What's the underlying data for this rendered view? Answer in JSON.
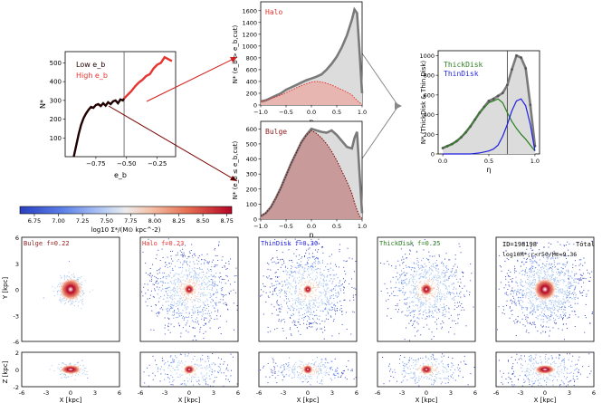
{
  "colors": {
    "gray_curve": "#7a7a7a",
    "gray_fill": "#dcdcdc",
    "red_fill": "#e8b6b0",
    "bulge": "#8b1a1a",
    "halo": "#e8332f",
    "thin": "#1f1fe0",
    "thick": "#2a7f1f",
    "dark_red": "#7a0000",
    "hist_red": "#e8332f",
    "hist_dark": "#200000"
  },
  "chart_data": [
    {
      "id": "eb_hist",
      "type": "line",
      "xlabel": "e_b",
      "ylabel": "N*",
      "xlim": [
        -1.0,
        -0.1
      ],
      "ylim": [
        0,
        560
      ],
      "xticks": [
        -0.75,
        -0.5,
        -0.25
      ],
      "xticklabels": [
        "−0.75",
        "−0.50",
        "−0.25"
      ],
      "yticks": [
        100,
        200,
        300,
        400,
        500
      ],
      "yticklabels": [
        "100",
        "200",
        "300",
        "400",
        "500"
      ],
      "cut_line": -0.52,
      "legend": [
        "Low e_b",
        "High e_b"
      ],
      "series": [
        {
          "name": "Low e_b",
          "x": [
            -0.93,
            -0.91,
            -0.89,
            -0.87,
            -0.85,
            -0.83,
            -0.81,
            -0.79,
            -0.77,
            -0.75,
            -0.73,
            -0.71,
            -0.69,
            -0.67,
            -0.65,
            -0.63,
            -0.61,
            -0.59,
            -0.57,
            -0.55,
            -0.53,
            -0.52
          ],
          "y": [
            0,
            60,
            120,
            170,
            205,
            230,
            250,
            265,
            260,
            275,
            280,
            270,
            285,
            272,
            290,
            280,
            295,
            300,
            285,
            305,
            300,
            310
          ]
        },
        {
          "name": "High e_b",
          "x": [
            -0.52,
            -0.49,
            -0.46,
            -0.43,
            -0.4,
            -0.37,
            -0.34,
            -0.31,
            -0.28,
            -0.25,
            -0.22,
            -0.19,
            -0.16,
            -0.13
          ],
          "y": [
            310,
            330,
            350,
            375,
            395,
            410,
            430,
            440,
            470,
            490,
            500,
            530,
            520,
            510
          ]
        }
      ]
    },
    {
      "id": "halo_eta",
      "type": "area",
      "title": "Halo",
      "xlabel": "η",
      "ylabel": "N* (e_b > e_b,cut)",
      "xlim": [
        -1.0,
        1.0
      ],
      "ylim": [
        0,
        1750
      ],
      "xticks": [
        -1.0,
        -0.5,
        0.0,
        0.5,
        1.0
      ],
      "xticklabels": [
        "−1.0",
        "−0.5",
        "0.0",
        "0.5",
        "1.0"
      ],
      "yticks": [
        0,
        200,
        400,
        600,
        800,
        1000,
        1200,
        1400,
        1600
      ],
      "yticklabels": [
        "0",
        "200",
        "400",
        "600",
        "800",
        "1000",
        "1200",
        "1400",
        "1600"
      ],
      "x": [
        -1.0,
        -0.9,
        -0.8,
        -0.7,
        -0.6,
        -0.5,
        -0.4,
        -0.3,
        -0.2,
        -0.1,
        0.0,
        0.1,
        0.2,
        0.3,
        0.4,
        0.5,
        0.6,
        0.7,
        0.8,
        0.85,
        0.9,
        0.95,
        1.0
      ],
      "series": [
        {
          "name": "All",
          "values": [
            60,
            80,
            120,
            160,
            200,
            260,
            300,
            340,
            380,
            420,
            450,
            480,
            520,
            600,
            700,
            820,
            980,
            1180,
            1450,
            1620,
            1560,
            900,
            200
          ]
        },
        {
          "name": "Halo",
          "values": [
            60,
            80,
            110,
            140,
            170,
            210,
            250,
            290,
            330,
            360,
            390,
            400,
            390,
            370,
            340,
            300,
            260,
            220,
            170,
            120,
            80,
            40,
            10
          ]
        }
      ]
    },
    {
      "id": "bulge_eta",
      "type": "area",
      "title": "Bulge",
      "xlabel": "η",
      "ylabel": "N* (e_b ≤ e_b,cut)",
      "xlim": [
        -1.0,
        1.0
      ],
      "ylim": [
        0,
        650
      ],
      "xticks": [
        -1.0,
        -0.5,
        0.0,
        0.5,
        1.0
      ],
      "xticklabels": [
        "−1.0",
        "−0.5",
        "0.0",
        "0.5",
        "1.0"
      ],
      "yticks": [
        0,
        100,
        200,
        300,
        400,
        500,
        600
      ],
      "yticklabels": [
        "0",
        "100",
        "200",
        "300",
        "400",
        "500",
        "600"
      ],
      "x": [
        -1.0,
        -0.9,
        -0.8,
        -0.7,
        -0.6,
        -0.5,
        -0.4,
        -0.3,
        -0.2,
        -0.1,
        0.0,
        0.1,
        0.2,
        0.3,
        0.4,
        0.5,
        0.6,
        0.7,
        0.8,
        0.85,
        0.9,
        0.95,
        1.0
      ],
      "series": [
        {
          "name": "All",
          "values": [
            20,
            40,
            80,
            140,
            210,
            290,
            370,
            440,
            510,
            560,
            600,
            590,
            580,
            575,
            590,
            560,
            520,
            480,
            470,
            540,
            580,
            300,
            40
          ]
        },
        {
          "name": "Bulge",
          "values": [
            20,
            40,
            80,
            140,
            210,
            290,
            370,
            440,
            510,
            560,
            590,
            570,
            540,
            500,
            450,
            390,
            320,
            250,
            170,
            110,
            60,
            20,
            5
          ]
        }
      ]
    },
    {
      "id": "disk_eta",
      "type": "line",
      "xlabel": "η",
      "ylabel": "N* (ThickDisk & Thin Disk)",
      "xlim": [
        -0.05,
        1.05
      ],
      "ylim": [
        0,
        1050
      ],
      "xticks": [
        0.0,
        0.5,
        1.0
      ],
      "xticklabels": [
        "0.0",
        "0.5",
        "1.0"
      ],
      "yticks": [
        0,
        200,
        400,
        600,
        800,
        1000
      ],
      "yticklabels": [
        "0",
        "200",
        "400",
        "600",
        "800",
        "1000"
      ],
      "cut_line": 0.7,
      "legend": [
        "ThickDisk",
        "ThinDisk"
      ],
      "x": [
        0.0,
        0.05,
        0.1,
        0.15,
        0.2,
        0.25,
        0.3,
        0.35,
        0.4,
        0.45,
        0.5,
        0.55,
        0.6,
        0.65,
        0.7,
        0.75,
        0.8,
        0.85,
        0.9,
        0.95,
        1.0
      ],
      "series": [
        {
          "name": "Total",
          "values": [
            60,
            80,
            100,
            130,
            170,
            220,
            280,
            350,
            420,
            480,
            540,
            560,
            590,
            620,
            700,
            860,
            1000,
            980,
            870,
            500,
            80
          ]
        },
        {
          "name": "ThickDisk",
          "values": [
            60,
            80,
            100,
            130,
            170,
            220,
            280,
            350,
            420,
            470,
            520,
            540,
            560,
            520,
            420,
            330,
            260,
            200,
            150,
            90,
            30
          ]
        },
        {
          "name": "ThinDisk",
          "values": [
            0,
            0,
            0,
            0,
            0,
            0,
            0,
            5,
            10,
            20,
            30,
            50,
            90,
            180,
            300,
            440,
            540,
            560,
            490,
            300,
            30
          ]
        }
      ]
    }
  ],
  "colorbar": {
    "label": "log10 Σ*/(M⊙ kpc^-2)",
    "vmin": 6.6,
    "vmax": 8.8,
    "ticks": [
      6.75,
      7.0,
      7.25,
      7.5,
      7.75,
      8.0,
      8.25,
      8.5,
      8.75
    ],
    "ticklabels": [
      "6.75",
      "7.00",
      "7.25",
      "7.50",
      "7.75",
      "8.00",
      "8.25",
      "8.50",
      "8.75"
    ]
  },
  "maps": {
    "xlabel": "X [kpc]",
    "ylabel_face": "Y [kpc]",
    "ylabel_edge": "Z [kpc]",
    "ticks_x": [
      "-6",
      "-3",
      "0",
      "3",
      "6"
    ],
    "ticks_y_face": [
      "6",
      "3",
      "0",
      "-3",
      "-6"
    ],
    "ticks_y_edge": [
      "2",
      "0",
      "-2"
    ],
    "panels": [
      {
        "label": "Bulge f=0.22",
        "color_key": "bulge",
        "spread": 0.16,
        "density": 400,
        "core": 1.0
      },
      {
        "label": "Halo f=0.23",
        "color_key": "halo",
        "spread": 0.5,
        "density": 900,
        "core": 0.3
      },
      {
        "label": "ThinDisk f=0.30",
        "color_key": "thin",
        "spread": 0.55,
        "density": 900,
        "core": 0.2
      },
      {
        "label": "ThickDisk f=0.25",
        "color_key": "thick",
        "spread": 0.45,
        "density": 800,
        "core": 0.4
      },
      {
        "label": "",
        "color_key": "",
        "spread": 0.5,
        "density": 1100,
        "core": 1.0
      }
    ],
    "total_id": "ID=198198",
    "total_title": "Total",
    "total_mass": "log10M*,r<r50/M⊙=9.36"
  }
}
